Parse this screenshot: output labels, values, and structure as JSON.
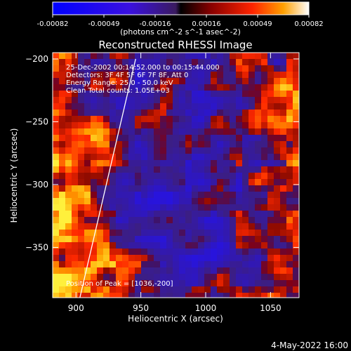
{
  "chart_data": {
    "type": "heatmap",
    "title": "Reconstructed RHESSI Image",
    "xlabel": "Heliocentric X (arcsec)",
    "ylabel": "Heliocentric Y (arcsec)",
    "xlim": [
      882,
      1072
    ],
    "ylim": [
      -390,
      -195
    ],
    "x_ticks": [
      900,
      950,
      1000,
      1050
    ],
    "y_ticks": [
      -200,
      -250,
      -300,
      -350
    ],
    "colorbar": {
      "ticks": [
        "-0.00082",
        "-0.00049",
        "-0.00016",
        "0.00016",
        "0.00049",
        "0.00082"
      ],
      "unit_label": "(photons cm^-2 s^-1 asec^-2)",
      "range": [
        -0.00082,
        0.00082
      ]
    },
    "annotations": [
      "25-Dec-2002 00:14:52.000 to 00:15:44.000",
      "Detectors: 3F 4F 5F 6F 7F 8F, Att 0",
      "Energy Range: 25.0 - 50.0 keV",
      "Clean    Total counts: 1.05E+03"
    ],
    "peak_label": "Position of Peak = [1036,-200]",
    "peak_position": [
      1036,
      -200
    ],
    "limb_line": [
      [
        903,
        -390
      ],
      [
        946,
        -200
      ]
    ],
    "date_stamp": "4-May-2022 16:00"
  }
}
